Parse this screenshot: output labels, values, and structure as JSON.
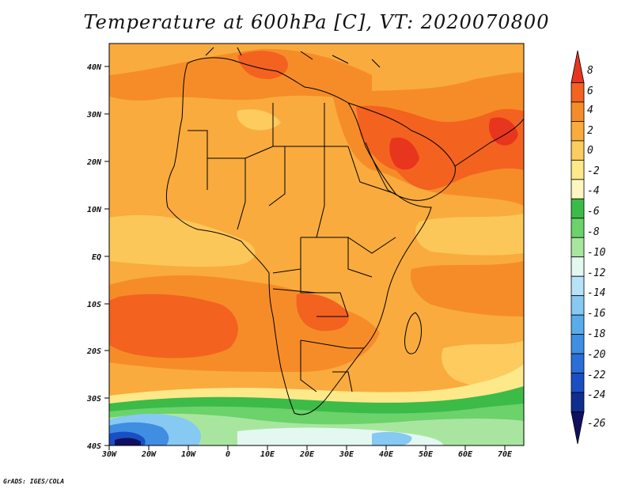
{
  "title": "Temperature at 600hPa [C], VT: 2020070800",
  "credit": "GrADS: IGES/COLA",
  "map": {
    "lon_range": [
      -30,
      75
    ],
    "lat_range": [
      -40,
      45
    ],
    "lon_ticks": [
      "30W",
      "20W",
      "10W",
      "0",
      "10E",
      "20E",
      "30E",
      "40E",
      "50E",
      "60E",
      "70E"
    ],
    "lat_ticks": [
      "40N",
      "30N",
      "20N",
      "10N",
      "EQ",
      "10S",
      "20S",
      "30S",
      "40S"
    ]
  },
  "colorbar": {
    "labels": [
      "8",
      "6",
      "4",
      "2",
      "0",
      "-2",
      "-4",
      "-6",
      "-8",
      "-10",
      "-12",
      "-14",
      "-16",
      "-18",
      "-20",
      "-22",
      "-24",
      "-26"
    ],
    "colors": [
      "#e8351e",
      "#f3621f",
      "#f68c28",
      "#f9ab3e",
      "#fdcb5e",
      "#fde88a",
      "#fef6c0",
      "#3cbb48",
      "#6cd26a",
      "#a8e6a0",
      "#e4f8f2",
      "#b7e3f8",
      "#86c9f2",
      "#5aabea",
      "#3f8ee2",
      "#2a6fd8",
      "#1a4fc4",
      "#0e2f8f",
      "#101060"
    ]
  },
  "legend_colors": {
    "land_outline": "#000000",
    "frame": "#000000"
  }
}
